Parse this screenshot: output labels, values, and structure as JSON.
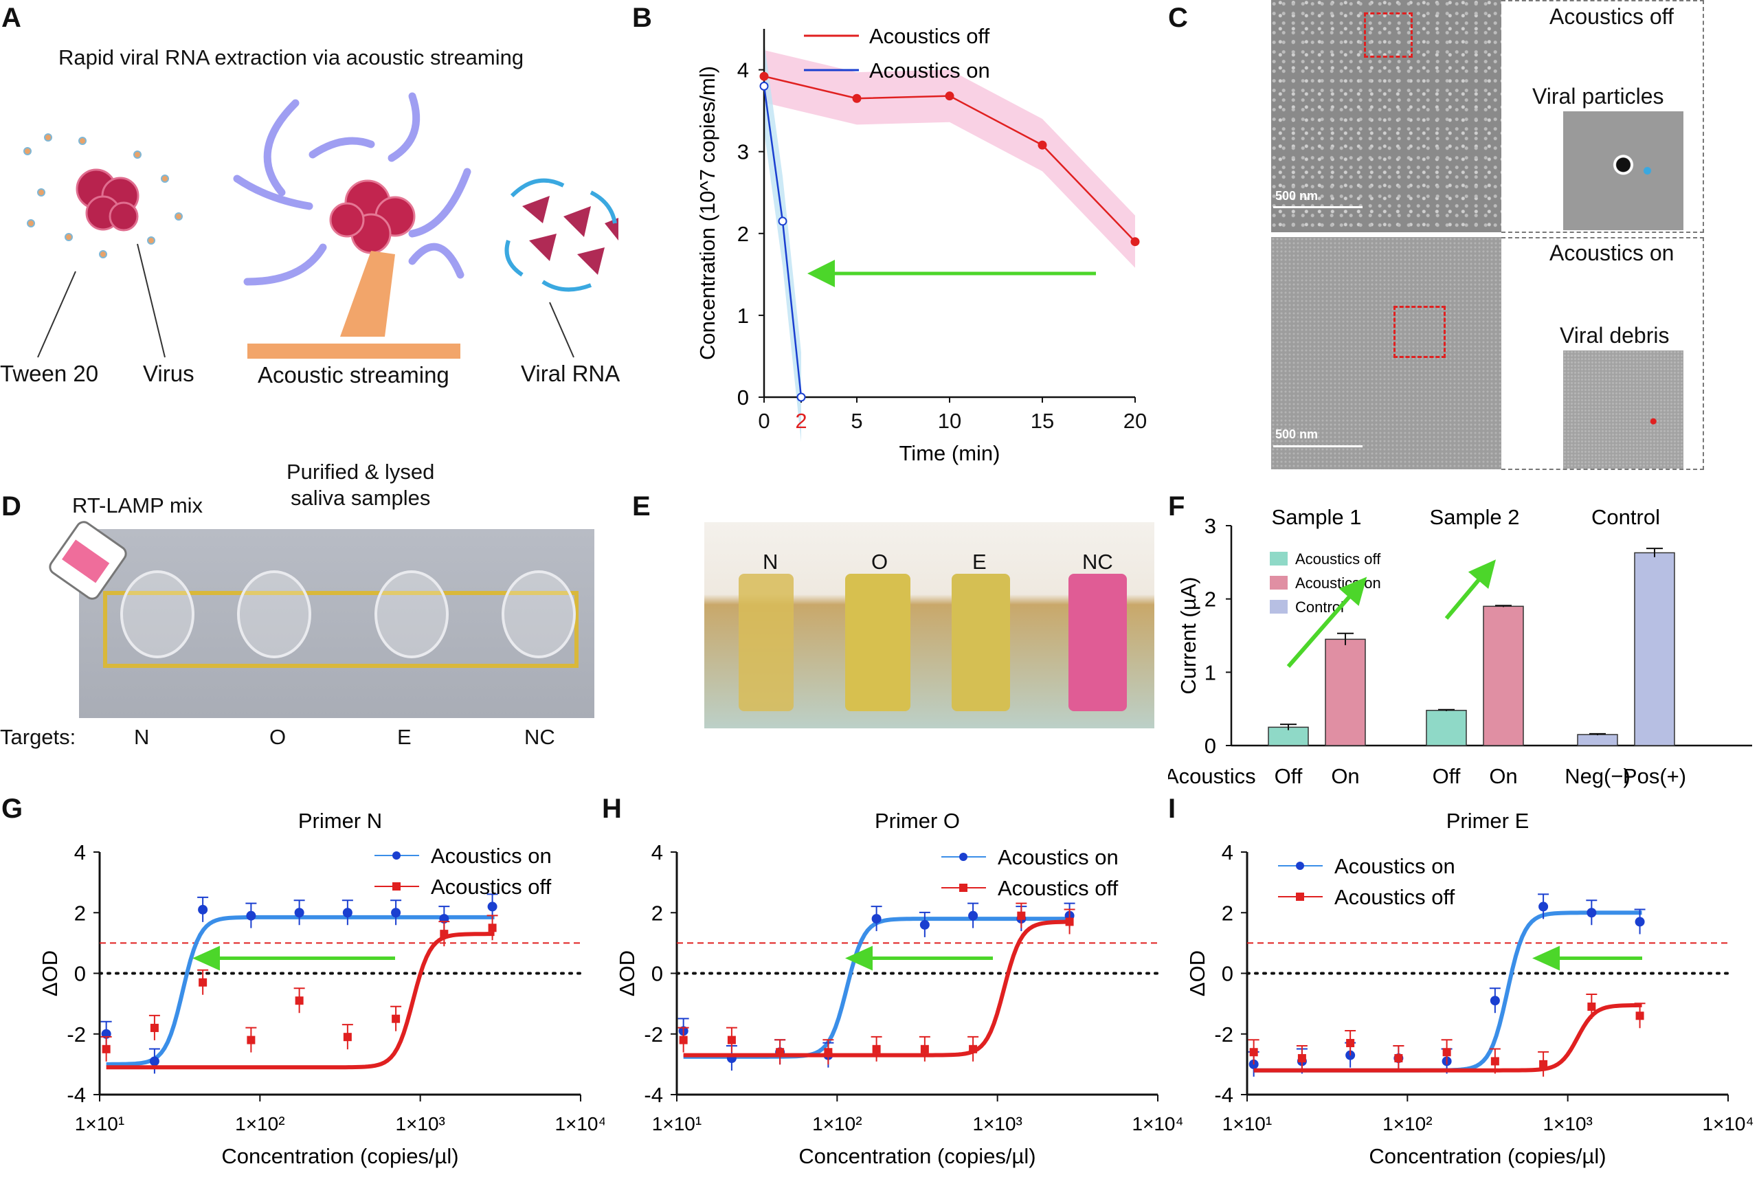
{
  "panels": {
    "A": "A",
    "B": "B",
    "C": "C",
    "D": "D",
    "E": "E",
    "F": "F",
    "G": "G",
    "H": "H",
    "I": "I"
  },
  "panelA": {
    "title": "Rapid viral RNA extraction via acoustic streaming",
    "tween": "Tween 20",
    "virus": "Virus",
    "streaming": "Acoustic streaming",
    "rna": "Viral RNA"
  },
  "panelC": {
    "top_label": "Acoustics off",
    "top_inset": "Viral particles",
    "bottom_label": "Acoustics on",
    "bottom_inset": "Viral debris",
    "scale": "500 nm"
  },
  "panelD": {
    "mix": "RT-LAMP mix",
    "samples": "Purified & lysed\nsaliva samples",
    "targets_label": "Targets:",
    "targets": [
      "N",
      "O",
      "E",
      "NC"
    ]
  },
  "panelE": {
    "targets": [
      "N",
      "O",
      "E",
      "NC"
    ]
  },
  "colors": {
    "off_red": "#e02020",
    "on_blue": "#1a3fd0",
    "green_arrow": "#4cd62a",
    "teal": "#8fd9c7",
    "pink": "#e08fa3",
    "lavender": "#b7bfe3"
  },
  "chart_data": [
    {
      "id": "B",
      "type": "line",
      "title": "",
      "xlabel": "Time (min)",
      "ylabel": "Concentration (10^7 copies/ml)",
      "xlim": [
        0,
        20
      ],
      "ylim": [
        0,
        4.5
      ],
      "xticks": [
        0,
        2,
        5,
        10,
        15,
        20
      ],
      "yticks": [
        0,
        1,
        2,
        3,
        4
      ],
      "series": [
        {
          "name": "Acoustics off",
          "x": [
            0,
            5,
            10,
            15,
            20
          ],
          "y": [
            3.92,
            3.65,
            3.68,
            3.08,
            1.9
          ]
        },
        {
          "name": "Acoustics on",
          "x": [
            0,
            1,
            2
          ],
          "y": [
            3.8,
            2.15,
            0
          ]
        }
      ]
    },
    {
      "id": "F",
      "type": "bar",
      "ylabel": "Current (µA)",
      "ylim": [
        0,
        3
      ],
      "yticks": [
        0,
        1,
        2,
        3
      ],
      "groups": [
        "Sample 1",
        "Sample 2",
        "Control"
      ],
      "categories": [
        "Off",
        "On",
        "Off",
        "On",
        "Neg(−)",
        "Pos(+)"
      ],
      "category_title": "Acoustics",
      "legend": [
        "Acoustics off",
        "Acoustics on",
        "Control"
      ],
      "values": [
        0.25,
        1.45,
        0.48,
        1.9,
        0.15,
        2.63
      ],
      "errors": [
        0.04,
        0.08,
        0.01,
        0.01,
        0.01,
        0.06
      ]
    },
    {
      "id": "G",
      "type": "scatter",
      "title": "Primer N",
      "xlabel": "Concentration (copies/µl)",
      "ylabel": "ΔOD",
      "xlim": [
        10,
        10000
      ],
      "ylim": [
        -4,
        4
      ],
      "yticks": [
        -4,
        -2,
        0,
        2,
        4
      ],
      "xtick_labels": [
        "1×10¹",
        "1×10²",
        "1×10³",
        "1×10⁴"
      ],
      "threshold": 1.0,
      "series": [
        {
          "name": "Acoustics on",
          "x": [
            11,
            22,
            44,
            88,
            176,
            352,
            704,
            1408,
            2816
          ],
          "y": [
            -2.0,
            -2.9,
            2.1,
            1.9,
            2.0,
            2.0,
            2.0,
            1.8,
            2.2
          ],
          "fit": {
            "bottom": -3.0,
            "top": 1.85,
            "ec50": 33
          }
        },
        {
          "name": "Acoustics off",
          "x": [
            11,
            22,
            44,
            88,
            176,
            352,
            704,
            1408,
            2816
          ],
          "y": [
            -2.5,
            -1.8,
            -0.3,
            -2.2,
            -0.9,
            -2.1,
            -1.5,
            1.3,
            1.5
          ],
          "fit": {
            "bottom": -3.1,
            "top": 1.3,
            "ec50": 900
          }
        }
      ]
    },
    {
      "id": "H",
      "type": "scatter",
      "title": "Primer O",
      "xlabel": "Concentration (copies/µl)",
      "ylabel": "ΔOD",
      "xlim": [
        10,
        10000
      ],
      "ylim": [
        -4,
        4
      ],
      "yticks": [
        -4,
        -2,
        0,
        2,
        4
      ],
      "xtick_labels": [
        "1×10¹",
        "1×10²",
        "1×10³",
        "1×10⁴"
      ],
      "threshold": 1.0,
      "series": [
        {
          "name": "Acoustics on",
          "x": [
            11,
            22,
            44,
            88,
            176,
            352,
            704,
            1408,
            2816
          ],
          "y": [
            -1.9,
            -2.8,
            -2.6,
            -2.7,
            1.8,
            1.6,
            1.9,
            1.8,
            1.9
          ],
          "fit": {
            "bottom": -2.75,
            "top": 1.8,
            "ec50": 115
          }
        },
        {
          "name": "Acoustics off",
          "x": [
            11,
            22,
            44,
            88,
            176,
            352,
            704,
            1408,
            2816
          ],
          "y": [
            -2.2,
            -2.2,
            -2.6,
            -2.6,
            -2.5,
            -2.5,
            -2.5,
            1.9,
            1.7
          ],
          "fit": {
            "bottom": -2.7,
            "top": 1.7,
            "ec50": 1100
          }
        }
      ]
    },
    {
      "id": "I",
      "type": "scatter",
      "title": "Primer E",
      "xlabel": "Concentration (copies/µl)",
      "ylabel": "ΔOD",
      "xlim": [
        10,
        10000
      ],
      "ylim": [
        -4,
        4
      ],
      "yticks": [
        -4,
        -2,
        0,
        2,
        4
      ],
      "xtick_labels": [
        "1×10¹",
        "1×10²",
        "1×10³",
        "1×10⁴"
      ],
      "threshold": 1.0,
      "series": [
        {
          "name": "Acoustics on",
          "x": [
            11,
            22,
            44,
            88,
            176,
            352,
            704,
            1408,
            2816
          ],
          "y": [
            -3.0,
            -2.9,
            -2.7,
            -2.8,
            -2.9,
            -0.9,
            2.2,
            2.0,
            1.7
          ],
          "fit": {
            "bottom": -3.2,
            "top": 2.0,
            "ec50": 420
          }
        },
        {
          "name": "Acoustics off",
          "x": [
            11,
            22,
            44,
            88,
            176,
            352,
            704,
            1408,
            2816
          ],
          "y": [
            -2.6,
            -2.8,
            -2.3,
            -2.8,
            -2.6,
            -2.9,
            -3.0,
            -1.1,
            -1.4
          ],
          "fit": {
            "bottom": -3.2,
            "top": -1.05,
            "ec50": 1150
          }
        }
      ]
    }
  ]
}
